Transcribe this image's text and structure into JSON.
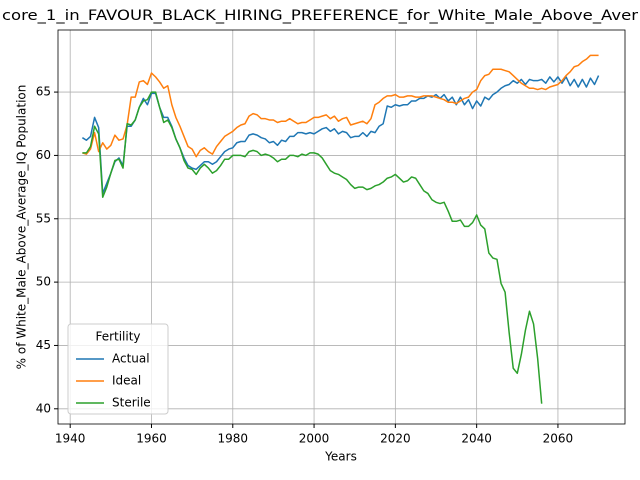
{
  "chart_data": {
    "type": "line",
    "title": "core_1_in_FAVOUR_BLACK_HIRING_PREFERENCE_for_White_Male_Above_Aver",
    "xlabel": "Years",
    "ylabel": "% of White_Male_Above_Average_IQ Population",
    "x": [
      1943,
      1944,
      1945,
      1946,
      1947,
      1948,
      1949,
      1950,
      1951,
      1952,
      1953,
      1954,
      1955,
      1956,
      1957,
      1958,
      1959,
      1960,
      1961,
      1962,
      1963,
      1964,
      1965,
      1966,
      1967,
      1968,
      1969,
      1970,
      1971,
      1972,
      1973,
      1974,
      1975,
      1976,
      1977,
      1978,
      1979,
      1980,
      1981,
      1982,
      1983,
      1984,
      1985,
      1986,
      1987,
      1988,
      1989,
      1990,
      1991,
      1992,
      1993,
      1994,
      1995,
      1996,
      1997,
      1998,
      1999,
      2000,
      2001,
      2002,
      2003,
      2004,
      2005,
      2006,
      2007,
      2008,
      2009,
      2010,
      2011,
      2012,
      2013,
      2014,
      2015,
      2016,
      2017,
      2018,
      2019,
      2020,
      2021,
      2022,
      2023,
      2024,
      2025,
      2026,
      2027,
      2028,
      2029,
      2030,
      2031,
      2032,
      2033,
      2034,
      2035,
      2036,
      2037,
      2038,
      2039,
      2040,
      2041,
      2042,
      2043,
      2044,
      2045,
      2046,
      2047,
      2048,
      2049,
      2050,
      2051,
      2052,
      2053,
      2054,
      2055,
      2056,
      2057,
      2058,
      2059,
      2060,
      2061,
      2062,
      2063,
      2064,
      2065,
      2066,
      2067,
      2068,
      2069,
      2070
    ],
    "series": [
      {
        "name": "Actual",
        "color": "#1f77b4",
        "values": [
          61.4,
          61.2,
          61.5,
          63.0,
          62.2,
          57.0,
          57.8,
          58.6,
          59.5,
          59.8,
          59.2,
          62.3,
          62.3,
          62.8,
          63.8,
          64.5,
          64.0,
          64.9,
          64.9,
          63.8,
          63.0,
          63.0,
          62.3,
          61.3,
          60.6,
          59.8,
          59.2,
          59.0,
          58.9,
          59.2,
          59.5,
          59.5,
          59.3,
          59.5,
          59.9,
          60.3,
          60.5,
          60.6,
          61.0,
          61.1,
          61.1,
          61.6,
          61.7,
          61.6,
          61.4,
          61.3,
          61.0,
          61.1,
          60.8,
          61.2,
          61.1,
          61.5,
          61.5,
          61.8,
          61.8,
          61.7,
          61.8,
          61.7,
          61.9,
          62.1,
          62.2,
          61.9,
          62.1,
          61.7,
          61.9,
          61.8,
          61.4,
          61.5,
          61.5,
          61.8,
          61.5,
          61.9,
          61.8,
          62.3,
          62.5,
          63.9,
          63.8,
          64.0,
          63.9,
          64.0,
          64.0,
          64.3,
          64.3,
          64.5,
          64.5,
          64.7,
          64.6,
          64.8,
          64.5,
          64.8,
          64.3,
          64.6,
          64.0,
          64.6,
          64.0,
          64.4,
          63.7,
          64.3,
          63.9,
          64.6,
          64.4,
          64.8,
          65.0,
          65.3,
          65.5,
          65.6,
          65.9,
          65.7,
          66.0,
          65.6,
          66.0,
          65.9,
          65.9,
          66.0,
          65.7,
          66.2,
          65.8,
          66.2,
          65.7,
          66.2,
          65.5,
          66.0,
          65.4,
          66.0,
          65.4,
          66.1,
          65.6,
          66.3
        ]
      },
      {
        "name": "Ideal",
        "color": "#ff7f0e",
        "values": [
          60.2,
          60.1,
          60.5,
          61.8,
          60.3,
          61.0,
          60.5,
          60.8,
          61.6,
          61.2,
          61.3,
          62.4,
          64.6,
          64.6,
          65.8,
          65.9,
          65.6,
          66.5,
          66.2,
          65.8,
          65.3,
          65.5,
          64.0,
          63.0,
          62.3,
          61.5,
          60.7,
          60.5,
          59.9,
          60.4,
          60.6,
          60.3,
          60.1,
          60.7,
          61.1,
          61.5,
          61.7,
          61.9,
          62.2,
          62.4,
          62.5,
          63.1,
          63.3,
          63.2,
          62.9,
          62.9,
          62.8,
          62.8,
          62.6,
          62.7,
          62.7,
          62.9,
          62.7,
          62.5,
          62.6,
          62.6,
          62.8,
          63.0,
          63.0,
          63.1,
          63.2,
          62.9,
          63.1,
          62.7,
          62.9,
          63.0,
          62.4,
          62.5,
          62.6,
          62.7,
          62.5,
          62.9,
          64.0,
          64.2,
          64.5,
          64.7,
          64.7,
          64.8,
          64.6,
          64.6,
          64.7,
          64.7,
          64.6,
          64.6,
          64.7,
          64.7,
          64.7,
          64.6,
          64.5,
          64.4,
          64.2,
          64.2,
          64.1,
          64.3,
          64.5,
          64.6,
          65.0,
          65.2,
          65.9,
          66.3,
          66.4,
          66.8,
          66.8,
          66.8,
          66.7,
          66.6,
          66.3,
          66.0,
          65.7,
          65.5,
          65.3,
          65.3,
          65.2,
          65.3,
          65.2,
          65.4,
          65.5,
          65.6,
          65.9,
          66.3,
          66.6,
          67.0,
          67.1,
          67.4,
          67.6,
          67.9,
          67.9,
          67.9
        ]
      },
      {
        "name": "Sterile",
        "color": "#2ca02c",
        "values": [
          60.2,
          60.2,
          60.7,
          62.3,
          61.7,
          56.7,
          57.5,
          58.6,
          59.6,
          59.7,
          59.0,
          62.5,
          62.4,
          62.8,
          63.8,
          64.3,
          64.4,
          65.0,
          65.0,
          63.8,
          62.6,
          62.8,
          62.2,
          61.3,
          60.6,
          59.6,
          59.0,
          58.9,
          58.5,
          59.0,
          59.3,
          59.0,
          58.6,
          58.8,
          59.2,
          59.7,
          59.7,
          60.0,
          60.0,
          60.0,
          59.9,
          60.3,
          60.4,
          60.3,
          60.0,
          60.1,
          60.0,
          59.8,
          59.5,
          59.7,
          59.7,
          60.0,
          60.0,
          59.9,
          60.1,
          60.0,
          60.2,
          60.2,
          60.1,
          59.8,
          59.3,
          58.8,
          58.6,
          58.5,
          58.3,
          58.1,
          57.7,
          57.4,
          57.5,
          57.5,
          57.3,
          57.4,
          57.6,
          57.7,
          57.9,
          58.2,
          58.3,
          58.5,
          58.2,
          57.9,
          58.0,
          58.3,
          58.2,
          57.7,
          57.2,
          57.0,
          56.5,
          56.3,
          56.2,
          56.3,
          55.6,
          54.8,
          54.8,
          54.9,
          54.4,
          54.4,
          54.7,
          55.3,
          54.5,
          54.2,
          52.3,
          51.9,
          51.8,
          49.9,
          49.2,
          46.0,
          43.2,
          42.8,
          44.3,
          46.2,
          47.7,
          46.7,
          44.0,
          40.4,
          null,
          null,
          null,
          null,
          null,
          null,
          null,
          null,
          null,
          null,
          null,
          null,
          null,
          null
        ]
      }
    ],
    "xlim": [
      1937,
      2076.5
    ],
    "ylim": [
      38.8,
      69.9
    ],
    "xticks": [
      1940,
      1960,
      1980,
      2000,
      2020,
      2040,
      2060
    ],
    "yticks": [
      40,
      45,
      50,
      55,
      60,
      65
    ],
    "grid": true,
    "legend_title": "Fertility",
    "legend_loc": "lower left"
  }
}
